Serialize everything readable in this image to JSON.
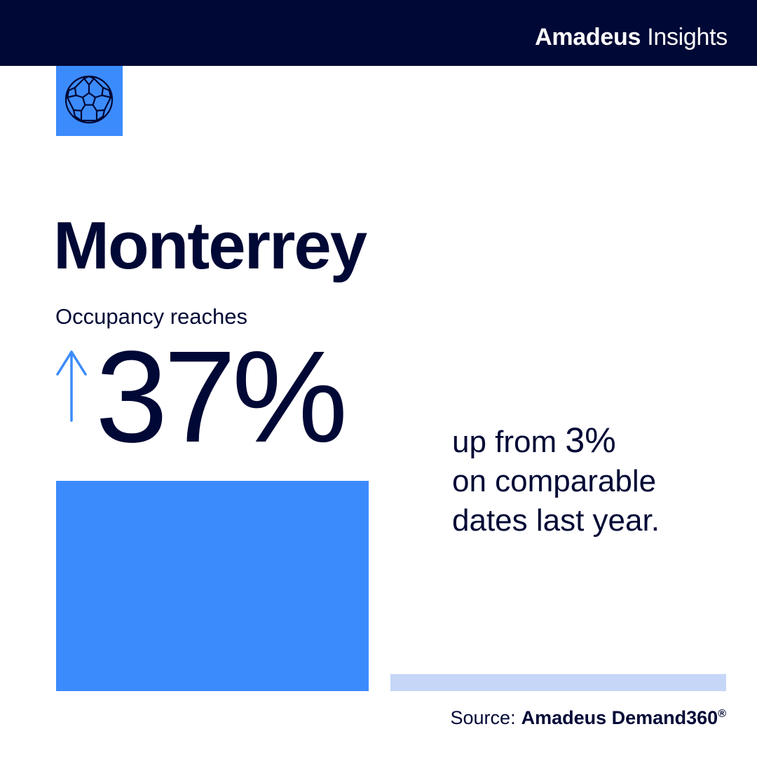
{
  "header": {
    "brand_bold": "Amadeus",
    "brand_light": "Insights"
  },
  "icon": {
    "name": "soccer-ball-icon"
  },
  "city": "Monterrey",
  "metric_label": "Occupancy reaches",
  "current_value": "37%",
  "comparison": {
    "prefix": "up from",
    "previous_value": "3%",
    "line2": "on comparable",
    "line3": "dates last year."
  },
  "source": {
    "label": "Source:",
    "name": "Amadeus Demand360",
    "mark": "®"
  },
  "colors": {
    "navy": "#000835",
    "blue": "#3c8bfc",
    "light_blue": "#c5d6f6"
  },
  "chart_data": {
    "type": "bar",
    "categories": [
      "",
      ""
    ],
    "values": [
      37,
      3
    ],
    "ylim": [
      0,
      37
    ],
    "colors": [
      "#3c8bfc",
      "#c5d6f6"
    ]
  }
}
